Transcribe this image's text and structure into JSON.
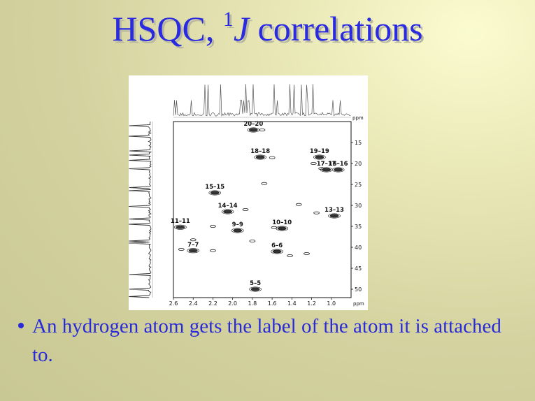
{
  "slide": {
    "title_main": "HSQC, ",
    "title_sup": "1",
    "title_italic": "J",
    "title_rest": " correlations",
    "bullet": "An hydrogen atom gets the label of the atom it is attached to."
  },
  "chart_data": {
    "type": "scatter",
    "title": "",
    "xlabel": "ppm",
    "ylabel": "ppm",
    "xlim": [
      2.6,
      0.8
    ],
    "ylim": [
      10,
      52
    ],
    "x_ticks": [
      "2.6",
      "2.4",
      "2.2",
      "2.0",
      "1.8",
      "1.6",
      "1.4",
      "1.2",
      "1.0"
    ],
    "y_ticks": [
      "15",
      "20",
      "25",
      "30",
      "35",
      "40",
      "45",
      "50"
    ],
    "correlations": [
      {
        "label": "20–20",
        "x": 1.79,
        "y": 12.0
      },
      {
        "label": "18–18",
        "x": 1.72,
        "y": 18.5
      },
      {
        "label": "19–19",
        "x": 1.12,
        "y": 18.5
      },
      {
        "label": "17–17",
        "x": 1.05,
        "y": 21.5
      },
      {
        "label": "16–16",
        "x": 0.93,
        "y": 21.5
      },
      {
        "label": "15–15",
        "x": 2.18,
        "y": 27.0
      },
      {
        "label": "14–14",
        "x": 2.05,
        "y": 31.5
      },
      {
        "label": "11–11",
        "x": 2.53,
        "y": 35.2
      },
      {
        "label": "10–10",
        "x": 1.5,
        "y": 35.5
      },
      {
        "label": "9–9",
        "x": 1.95,
        "y": 36.0
      },
      {
        "label": "13–13",
        "x": 0.97,
        "y": 32.5
      },
      {
        "label": "7–7",
        "x": 2.4,
        "y": 40.8
      },
      {
        "label": "6–6",
        "x": 1.55,
        "y": 41.0
      },
      {
        "label": "5–5",
        "x": 1.77,
        "y": 50.0
      }
    ],
    "extra_peaks": [
      {
        "x": 1.25,
        "y": 41.5
      },
      {
        "x": 1.42,
        "y": 42.0
      },
      {
        "x": 1.33,
        "y": 29.8
      },
      {
        "x": 1.95,
        "y": 36.0
      },
      {
        "x": 2.2,
        "y": 40.8
      },
      {
        "x": 1.7,
        "y": 12.0
      },
      {
        "x": 1.6,
        "y": 18.6
      },
      {
        "x": 1.18,
        "y": 20.0
      },
      {
        "x": 1.1,
        "y": 21.2
      },
      {
        "x": 1.15,
        "y": 31.8
      },
      {
        "x": 1.87,
        "y": 31.0
      },
      {
        "x": 2.4,
        "y": 38.2
      },
      {
        "x": 1.68,
        "y": 24.8
      },
      {
        "x": 2.2,
        "y": 35.0
      },
      {
        "x": 1.8,
        "y": 38.5
      },
      {
        "x": 1.58,
        "y": 35.3
      },
      {
        "x": 2.52,
        "y": 40.5
      }
    ],
    "grid": false
  }
}
